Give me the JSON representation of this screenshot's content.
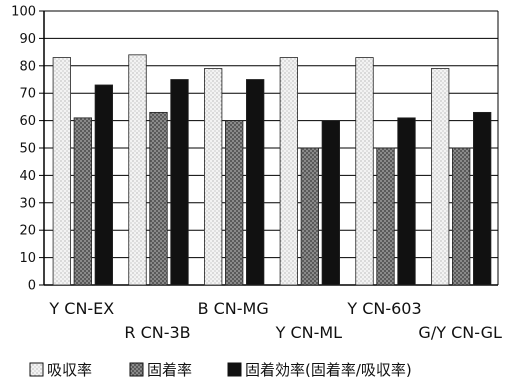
{
  "chart_data": {
    "type": "bar",
    "categories": [
      "Y CN-EX",
      "R CN-3B",
      "B CN-MG",
      "Y CN-ML",
      "Y CN-603",
      "G/Y CN-GL"
    ],
    "series": [
      {
        "name": "吸収率",
        "values": [
          83,
          84,
          79,
          83,
          83,
          79
        ],
        "pattern": "light-dotted"
      },
      {
        "name": "固着率",
        "values": [
          61,
          63,
          60,
          50,
          50,
          50
        ],
        "pattern": "dark-checked"
      },
      {
        "name": "固着効率(固着率/吸収率)",
        "values": [
          73,
          75,
          75,
          60,
          61,
          63
        ],
        "pattern": "solid-black"
      }
    ],
    "ylim": [
      0,
      100
    ],
    "yticks": [
      0,
      10,
      20,
      30,
      40,
      50,
      60,
      70,
      80,
      90,
      100
    ],
    "grid": true,
    "legend_placement": "bottom",
    "title": "",
    "xlabel": "",
    "ylabel": ""
  },
  "legend": {
    "items": [
      "吸収率",
      "固着率",
      "固着効率(固着率/吸収率)"
    ]
  },
  "colors": {
    "bar_light": "#f2f2f2",
    "bar_mid": "#6a6a6a",
    "bar_dark": "#111111",
    "axis": "#000000",
    "grid": "#000000"
  }
}
